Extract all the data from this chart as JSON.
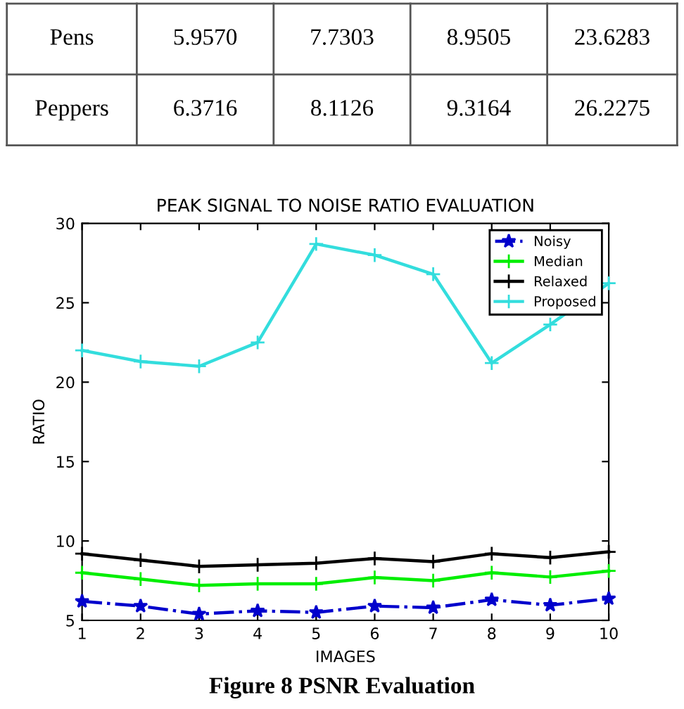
{
  "chart_data": [
    {
      "type": "other",
      "annotations": [
        "Pens",
        "5.9570",
        "7.7303",
        "8.9505",
        "23.6283",
        "Peppers",
        "6.3716",
        "8.1126",
        "9.3164",
        "26.2275"
      ]
    },
    {
      "type": "line",
      "title": "PEAK SIGNAL TO NOISE RATIO EVALUATION",
      "xlabel": "IMAGES",
      "ylabel": "RATIO",
      "x": [
        1,
        2,
        3,
        4,
        5,
        6,
        7,
        8,
        9,
        10
      ],
      "series": [
        {
          "name": "Noisy",
          "color": "#0000cc",
          "marker": "star",
          "line_style": "dashdot",
          "values": [
            6.2,
            5.9,
            5.4,
            5.6,
            5.5,
            5.9,
            5.8,
            6.3,
            5.957,
            6.3716
          ]
        },
        {
          "name": "Median",
          "color": "#00ee00",
          "marker": "cross",
          "line_style": "solid",
          "values": [
            8.0,
            7.6,
            7.2,
            7.3,
            7.3,
            7.7,
            7.5,
            8.0,
            7.7303,
            8.1126
          ]
        },
        {
          "name": "Relaxed",
          "color": "#000000",
          "marker": "cross",
          "line_style": "solid",
          "values": [
            9.2,
            8.8,
            8.4,
            8.5,
            8.6,
            8.9,
            8.7,
            9.2,
            8.9505,
            9.3164
          ]
        },
        {
          "name": "Proposed",
          "color": "#33dddd",
          "marker": "cross",
          "line_style": "solid",
          "values": [
            22.0,
            21.3,
            21.0,
            22.5,
            28.7,
            28.0,
            26.8,
            21.2,
            23.6283,
            26.2275
          ]
        }
      ],
      "xlim": [
        1,
        10
      ],
      "xticks": [
        1,
        2,
        3,
        4,
        5,
        6,
        7,
        8,
        9,
        10
      ],
      "ylim": [
        5,
        30
      ],
      "yticks": [
        5,
        10,
        15,
        20,
        25,
        30
      ],
      "grid": false,
      "legend": "top right",
      "annotations": [
        "Figure 8 PSNR Evaluation"
      ]
    }
  ]
}
